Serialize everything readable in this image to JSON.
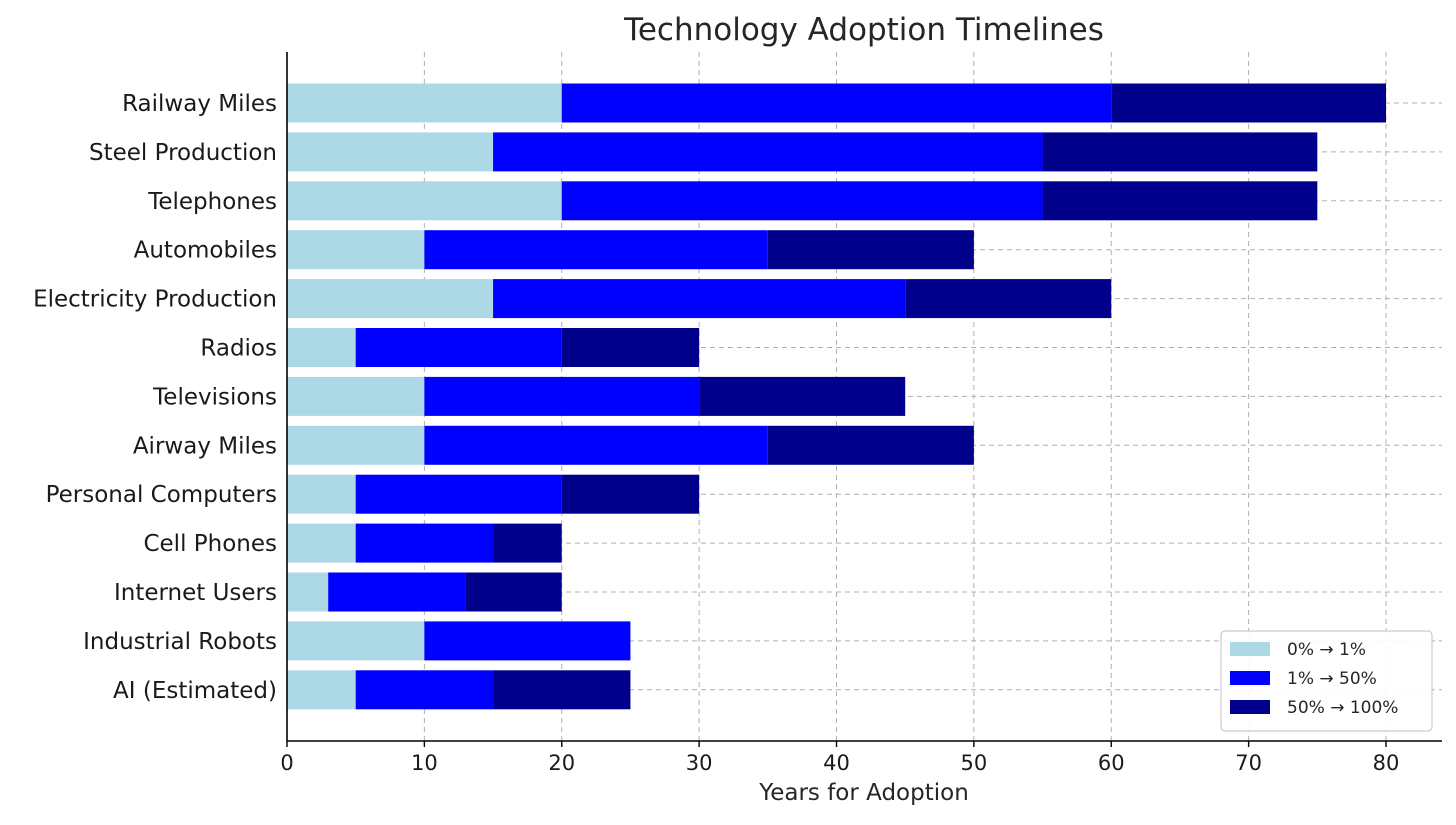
{
  "chart_data": {
    "type": "bar",
    "orientation": "horizontal",
    "stacked": true,
    "title": "Technology Adoption Timelines",
    "xlabel": "Years for Adoption",
    "ylabel": "",
    "xlim": [
      0,
      84
    ],
    "xticks": [
      "0",
      "10",
      "20",
      "30",
      "40",
      "50",
      "60",
      "70",
      "80"
    ],
    "grid": true,
    "legend_position": "lower-right",
    "categories": [
      "Railway Miles",
      "Steel Production",
      "Telephones",
      "Automobiles",
      "Electricity Production",
      "Radios",
      "Televisions",
      "Airway Miles",
      "Personal Computers",
      "Cell Phones",
      "Internet Users",
      "Industrial Robots",
      "AI (Estimated)"
    ],
    "series": [
      {
        "name": "0% → 1%",
        "color": "#add8e6",
        "values": [
          20,
          15,
          20,
          10,
          15,
          5,
          10,
          10,
          5,
          5,
          3,
          10,
          5
        ]
      },
      {
        "name": "1% → 50%",
        "color": "#0000ff",
        "values": [
          40,
          40,
          35,
          25,
          30,
          15,
          20,
          25,
          15,
          10,
          10,
          15,
          10
        ]
      },
      {
        "name": "50% → 100%",
        "color": "#00008b",
        "values": [
          20,
          20,
          20,
          15,
          15,
          10,
          15,
          15,
          10,
          5,
          7,
          0,
          10
        ]
      }
    ]
  }
}
